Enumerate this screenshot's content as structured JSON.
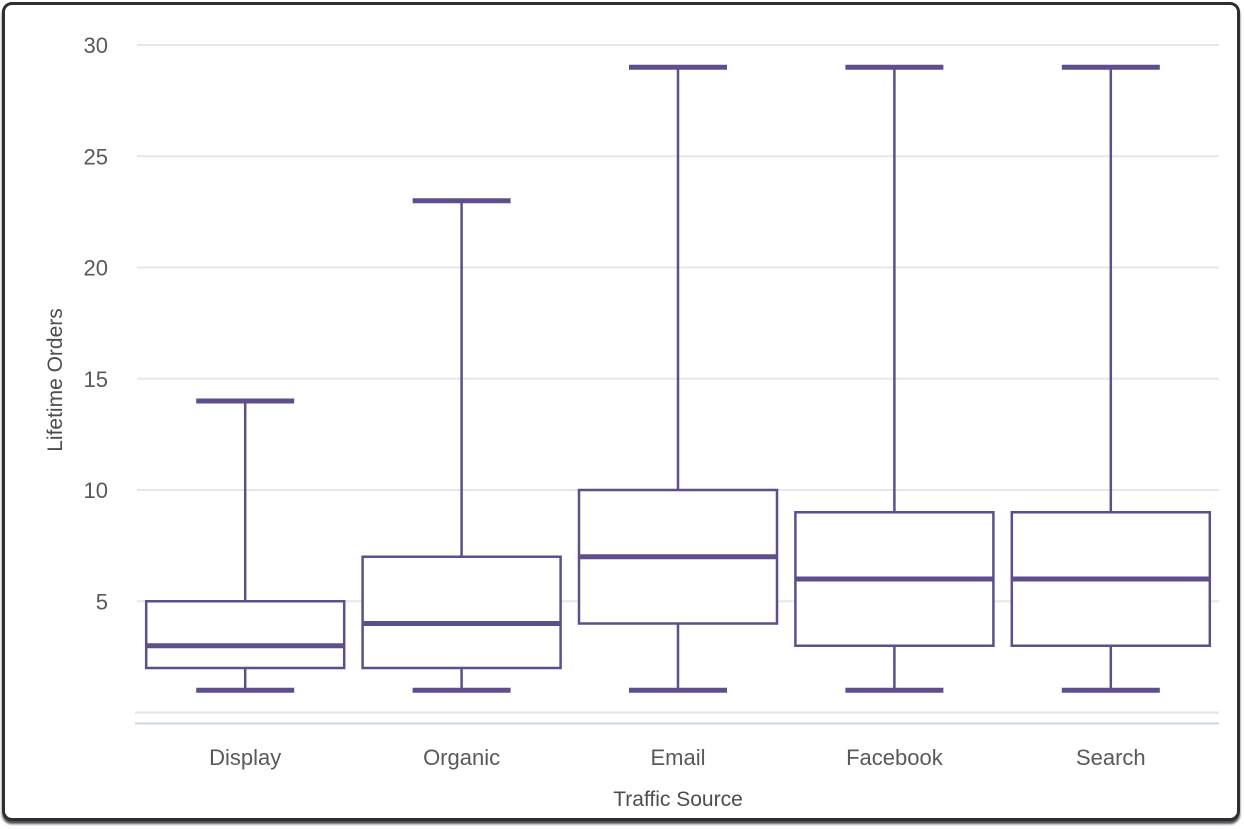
{
  "frame": {
    "background_color": "#ffffff",
    "border_color": "#2c3034"
  },
  "chart_data": {
    "type": "boxplot",
    "title": "",
    "xlabel": "Traffic Source",
    "ylabel": "Lifetime Orders",
    "categories": [
      "Display",
      "Organic",
      "Email",
      "Facebook",
      "Search"
    ],
    "series": [
      {
        "name": "Display",
        "min": 1,
        "q1": 2,
        "median": 3,
        "q3": 5,
        "max": 14
      },
      {
        "name": "Organic",
        "min": 1,
        "q1": 2,
        "median": 4,
        "q3": 7,
        "max": 23
      },
      {
        "name": "Email",
        "min": 1,
        "q1": 4,
        "median": 7,
        "q3": 10,
        "max": 29
      },
      {
        "name": "Facebook",
        "min": 1,
        "q1": 3,
        "median": 6,
        "q3": 9,
        "max": 29
      },
      {
        "name": "Search",
        "min": 1,
        "q1": 3,
        "median": 6,
        "q3": 9,
        "max": 29
      }
    ],
    "y_ticks": [
      5,
      10,
      15,
      20,
      25,
      30
    ],
    "ylim": [
      0,
      30
    ],
    "grid": true,
    "legend": "none",
    "colors": {
      "box_stroke": "#5E4F8C",
      "box_fill": "#ffffff",
      "gridline": "#e7e7e7",
      "zero_line": "#e3e3e3",
      "baseline": "#ccd5ea",
      "tick_label": "#595959",
      "axis_title": "#4d4d4d"
    }
  }
}
